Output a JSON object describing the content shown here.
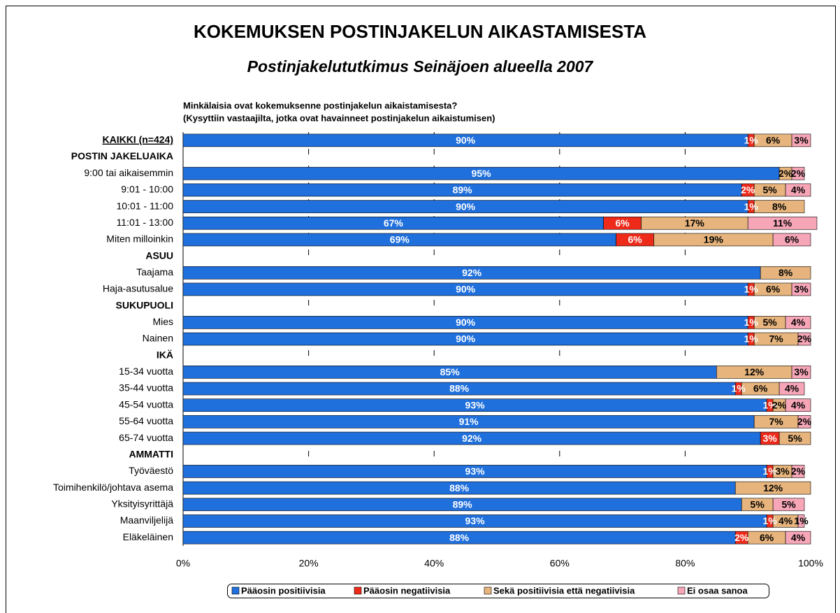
{
  "chart_data": {
    "type": "stacked_barh",
    "title": "KOKEMUKSEN POSTINJAKELUN AIKASTAMISESTA",
    "subtitle": "Postinjakelututkimus Seinäjoen alueella 2007",
    "question": [
      "Minkälaisia ovat kokemuksenne postinjakelun aikaistamisesta?",
      "(Kysyttiin vastaajilta, jotka ovat havainneet postinjakelun aikaistumisen)"
    ],
    "categories": [
      "KAIKKI (n=424)",
      "POSTIN JAKELUAIKA",
      "9:00 tai aikaisemmin",
      "9:01 - 10:00",
      "10:01 - 11:00",
      "11:01 - 13:00",
      "Miten milloinkin",
      "ASUU",
      "Taajama",
      "Haja-asutusalue",
      "SUKUPUOLI",
      "Mies",
      "Nainen",
      "IKÄ",
      "15-34 vuotta",
      "35-44 vuotta",
      "45-54 vuotta",
      "55-64 vuotta",
      "65-74 vuotta",
      "AMMATTI",
      "Työväestö",
      "Toimihenkilö/johtava asema",
      "Yksityisyrittäjä",
      "Maanviljelijä",
      "Eläkeläinen"
    ],
    "series": [
      {
        "name": "Pääosin positiivisia",
        "color": "#1f6fdc",
        "label_color": "#ffffff",
        "values": [
          90,
          null,
          95,
          89,
          90,
          67,
          69,
          null,
          92,
          90,
          null,
          90,
          90,
          null,
          85,
          88,
          93,
          91,
          92,
          null,
          93,
          88,
          89,
          93,
          88
        ],
        "value_labels": [
          "90%",
          null,
          "95%",
          "89%",
          "90%",
          "67%",
          "69%",
          null,
          "92%",
          "90%",
          null,
          "90%",
          "90%",
          null,
          "85%",
          "88%",
          "93%",
          "91%",
          "92%",
          null,
          "93%",
          "88%",
          "89%",
          "93%",
          "88%"
        ]
      },
      {
        "name": "Pääosin negatiivisia",
        "color": "#ee2a1a",
        "label_color": "#ffffff",
        "values": [
          1,
          null,
          null,
          2,
          1,
          6,
          6,
          null,
          null,
          1,
          null,
          1,
          1,
          null,
          null,
          1,
          1,
          null,
          3,
          null,
          1,
          null,
          null,
          1,
          2
        ],
        "value_labels": [
          "1%",
          null,
          null,
          "2%",
          "1%",
          "6%",
          "6%",
          null,
          null,
          "1%",
          null,
          "1%",
          "1%",
          null,
          null,
          "1%",
          "1%",
          null,
          "3%",
          null,
          "1%",
          null,
          null,
          "1%",
          "2%"
        ]
      },
      {
        "name": "Sekä positiivisia että negatiivisia",
        "color": "#e6b47c",
        "label_color": "#000000",
        "values": [
          6,
          null,
          2,
          5,
          8,
          17,
          19,
          null,
          8,
          6,
          null,
          5,
          7,
          null,
          12,
          6,
          2,
          7,
          5,
          null,
          3,
          12,
          5,
          4,
          6
        ],
        "value_labels": [
          "6%",
          null,
          "2%",
          "5%",
          "8%",
          "17%",
          "19%",
          null,
          "8%",
          "6%",
          null,
          "5%",
          "7%",
          null,
          "12%",
          "6%",
          "2%",
          "7%",
          "5%",
          null,
          "3%",
          "12%",
          "5%",
          "4%",
          "6%"
        ]
      },
      {
        "name": "Ei osaa sanoa",
        "color": "#f7a6b8",
        "label_color": "#000000",
        "values": [
          3,
          null,
          2,
          4,
          null,
          11,
          6,
          null,
          null,
          3,
          null,
          4,
          2,
          null,
          3,
          4,
          4,
          2,
          null,
          null,
          2,
          null,
          5,
          1,
          4
        ],
        "value_labels": [
          "3%",
          null,
          "2%",
          "4%",
          null,
          "11%",
          "6%",
          null,
          null,
          "3%",
          null,
          "4%",
          "2%",
          null,
          "3%",
          "4%",
          "4%",
          "2%",
          null,
          null,
          "2%",
          null,
          "5%",
          "1%",
          "4%"
        ]
      }
    ],
    "xlim": [
      0,
      100
    ],
    "xticks": [
      {
        "value": 0,
        "label": "0%"
      },
      {
        "value": 20,
        "label": "20%"
      },
      {
        "value": 40,
        "label": "40%"
      },
      {
        "value": 60,
        "label": "60%"
      },
      {
        "value": 80,
        "label": "80%"
      },
      {
        "value": 100,
        "label": "100%"
      }
    ],
    "grid": true
  }
}
